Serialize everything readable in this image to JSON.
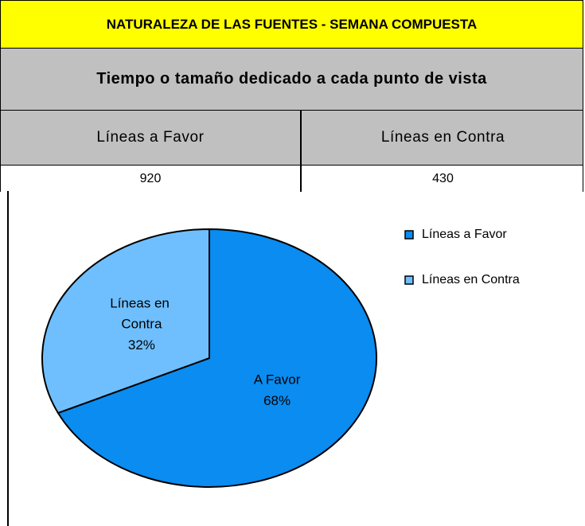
{
  "table": {
    "title": "NATURALEZA DE LAS FUENTES - SEMANA COMPUESTA",
    "subtitle": "Tiempo o tamaño dedicado a cada punto de vista",
    "headers": [
      "Líneas a Favor",
      "Líneas en Contra"
    ],
    "rows": [
      [
        920,
        430
      ]
    ]
  },
  "chart_data": {
    "type": "pie",
    "categories": [
      "Líneas a Favor",
      "Líneas en Contra"
    ],
    "slice_labels": [
      "A Favor",
      "Líneas en Contra"
    ],
    "values": [
      68,
      32
    ],
    "value_labels": [
      "68%",
      "32%"
    ],
    "colors": [
      "#0a8cf0",
      "#6fbfff"
    ],
    "legend": "right"
  }
}
